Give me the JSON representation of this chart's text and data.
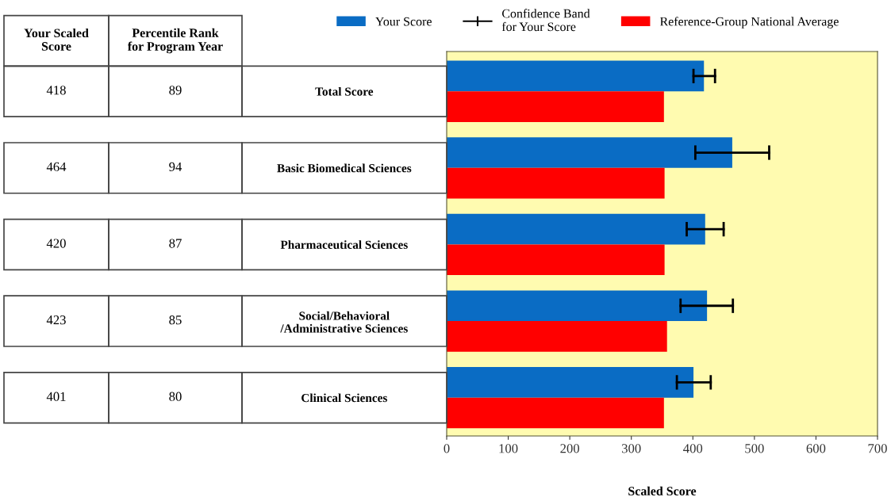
{
  "chart_data": {
    "type": "bar",
    "orientation": "horizontal",
    "xlabel": "Scaled Score",
    "categories": [
      "Total Score",
      "Basic Biomedical Sciences",
      "Pharmaceutical Sciences",
      "Social/Behavioral\n/Administrative Sciences",
      "Clinical Sciences"
    ],
    "series": [
      {
        "name": "Your Score",
        "color": "#0a6cc4",
        "values": [
          418,
          464,
          420,
          423,
          401
        ],
        "errors": [
          [
            401,
            436
          ],
          [
            404,
            524
          ],
          [
            390,
            450
          ],
          [
            380,
            465
          ],
          [
            374,
            429
          ]
        ],
        "value_labels": [
          "418",
          "464",
          "420",
          "423",
          "401"
        ]
      },
      {
        "name": "Reference-Group National Average",
        "color": "#ff0000",
        "values": [
          353,
          354,
          354,
          358,
          353
        ]
      }
    ],
    "xlim": [
      0,
      700
    ],
    "xticks": [
      0,
      100,
      200,
      300,
      400,
      500,
      600,
      700
    ],
    "grid": false,
    "legend": "top",
    "annotations": [
      "Confidence Band\nfor Your Score",
      "Your Scaled\nScore",
      "Percentile Rank\nfor Program Year",
      "89",
      "94",
      "87",
      "85",
      "80"
    ]
  }
}
